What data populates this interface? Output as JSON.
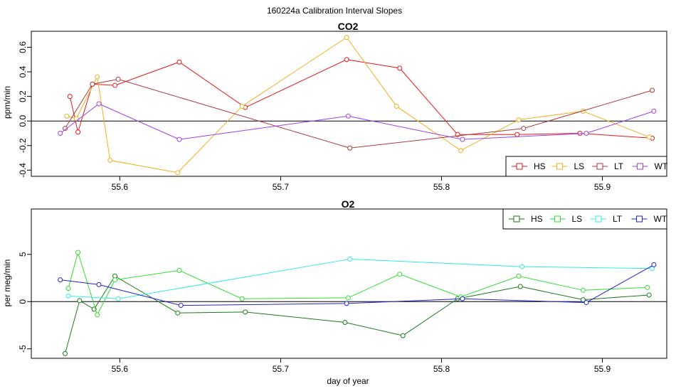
{
  "figure": {
    "title": "160224a   Calibration Interval Slopes"
  },
  "chart_data": [
    {
      "type": "line",
      "title": "CO2",
      "xlabel": "",
      "ylabel": "ppm/min",
      "xlim": [
        55.545,
        55.94
      ],
      "ylim": [
        -0.45,
        0.73
      ],
      "xticks": [
        55.6,
        55.7,
        55.8,
        55.9
      ],
      "xtick_labels": [
        "55.6",
        "55.7",
        "55.8",
        "55.9"
      ],
      "yticks": [
        -0.4,
        -0.2,
        0.0,
        0.2,
        0.4,
        0.6
      ],
      "ytick_labels": [
        "-0.4",
        "-0.2",
        "0.0",
        "0.2",
        "0.4",
        "0.6"
      ],
      "hline": 0,
      "legend_position": "bottom-right",
      "series": [
        {
          "name": "HS",
          "color": "#e41a1c",
          "x": [
            55.569,
            55.574,
            55.583,
            55.597,
            55.637,
            55.678,
            55.741,
            55.774,
            55.81,
            55.847,
            55.886,
            55.931
          ],
          "y": [
            0.2,
            -0.09,
            0.3,
            0.29,
            0.48,
            0.11,
            0.5,
            0.43,
            -0.11,
            -0.11,
            -0.1,
            -0.14
          ]
        },
        {
          "name": "LS",
          "color": "#f0b020",
          "x": [
            55.567,
            55.573,
            55.586,
            55.594,
            55.636,
            55.676,
            55.741,
            55.772,
            55.812,
            55.848,
            55.888,
            55.929
          ],
          "y": [
            0.04,
            0.02,
            0.36,
            -0.32,
            -0.42,
            0.12,
            0.68,
            0.12,
            -0.24,
            0.01,
            0.08,
            -0.13
          ]
        },
        {
          "name": "LT",
          "color": "#b03a3a",
          "x": [
            55.566,
            55.583,
            55.599,
            55.743,
            55.851,
            55.931
          ],
          "y": [
            -0.06,
            0.3,
            0.34,
            -0.22,
            -0.06,
            0.25
          ]
        },
        {
          "name": "WT",
          "color": "#a040e0",
          "x": [
            55.563,
            55.587,
            55.637,
            55.742,
            55.813,
            55.89,
            55.932
          ],
          "y": [
            -0.1,
            0.14,
            -0.15,
            0.04,
            -0.15,
            -0.1,
            0.08
          ]
        }
      ]
    },
    {
      "type": "line",
      "title": "O2",
      "xlabel": "day of year",
      "ylabel": "per meg/min",
      "xlim": [
        55.545,
        55.94
      ],
      "ylim": [
        -6.0,
        9.8
      ],
      "xticks": [
        55.6,
        55.7,
        55.8,
        55.9
      ],
      "xtick_labels": [
        "55.6",
        "55.7",
        "55.8",
        "55.9"
      ],
      "yticks": [
        -5,
        0,
        5
      ],
      "ytick_labels": [
        "-5",
        "0",
        "5"
      ],
      "hline": 0,
      "legend_position": "top-right",
      "series": [
        {
          "name": "HS",
          "color": "#1a7a1a",
          "x": [
            55.566,
            55.575,
            55.584,
            55.597,
            55.636,
            55.678,
            55.74,
            55.776,
            55.81,
            55.849,
            55.888,
            55.929
          ],
          "y": [
            -5.5,
            0.1,
            -0.8,
            2.7,
            -1.2,
            -1.1,
            -2.2,
            -3.6,
            0.3,
            1.6,
            0.2,
            0.7
          ]
        },
        {
          "name": "LS",
          "color": "#33dd33",
          "x": [
            55.568,
            55.574,
            55.586,
            55.597,
            55.637,
            55.676,
            55.742,
            55.774,
            55.812,
            55.848,
            55.888,
            55.928
          ],
          "y": [
            1.4,
            5.2,
            -1.4,
            2.3,
            3.3,
            0.3,
            0.4,
            2.9,
            0.5,
            2.7,
            1.2,
            1.5
          ]
        },
        {
          "name": "LT",
          "color": "#33e8e8",
          "x": [
            55.568,
            55.599,
            55.743,
            55.85,
            55.931
          ],
          "y": [
            0.6,
            0.3,
            4.5,
            3.7,
            3.5
          ]
        },
        {
          "name": "WT",
          "color": "#2222cc",
          "x": [
            55.563,
            55.587,
            55.638,
            55.741,
            55.813,
            55.89,
            55.932
          ],
          "y": [
            2.3,
            1.8,
            -0.4,
            -0.2,
            0.3,
            -0.1,
            3.9
          ]
        }
      ]
    }
  ]
}
